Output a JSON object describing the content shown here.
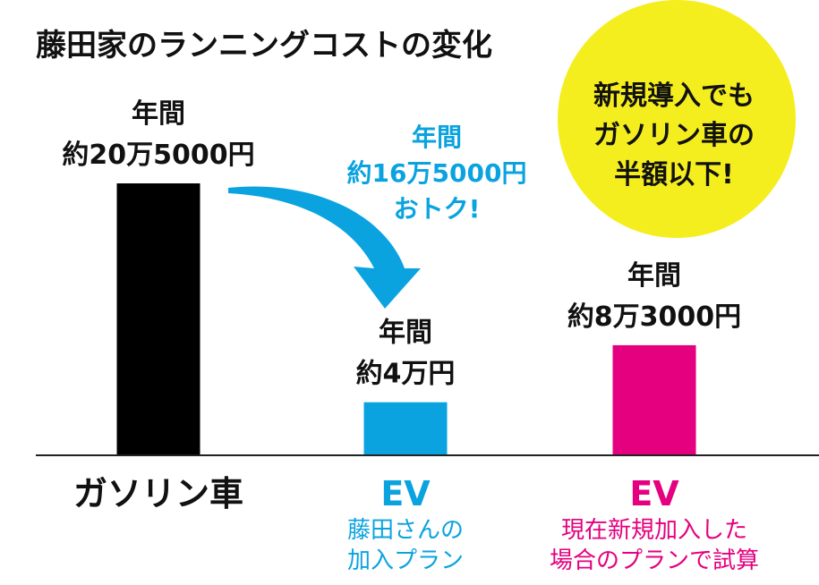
{
  "title": "藤田家のランニングコストの変化",
  "bubble": {
    "lines": [
      "新規導入でも",
      "ガソリン車の",
      "半額以下!"
    ],
    "color": "#f5ee1f"
  },
  "savings": {
    "lines": [
      "年間",
      "約16万5000円",
      "おトク!"
    ],
    "color": "#0aa3e0"
  },
  "chart_data": {
    "type": "bar",
    "title": "藤田家のランニングコストの変化",
    "unit": "円/年",
    "categories": [
      "ガソリン車",
      "EV",
      "EV"
    ],
    "values": [
      205000,
      40000,
      83000
    ],
    "ylim": [
      0,
      205000
    ],
    "grid": false,
    "bars": [
      {
        "category": "ガソリン車",
        "value": 205000,
        "color": "#000000",
        "label_lines": [
          "年間",
          "約20万5000円"
        ],
        "sublabel_lines": []
      },
      {
        "category": "EV",
        "value": 40000,
        "color": "#0aa3e0",
        "label_lines": [
          "年間",
          "約4万円"
        ],
        "sublabel_lines": [
          "藤田さんの",
          "加入プラン"
        ]
      },
      {
        "category": "EV",
        "value": 83000,
        "color": "#e4007f",
        "label_lines": [
          "年間",
          "約8万3000円"
        ],
        "sublabel_lines": [
          "現在新規加入した",
          "場合のプランで試算"
        ]
      }
    ]
  }
}
